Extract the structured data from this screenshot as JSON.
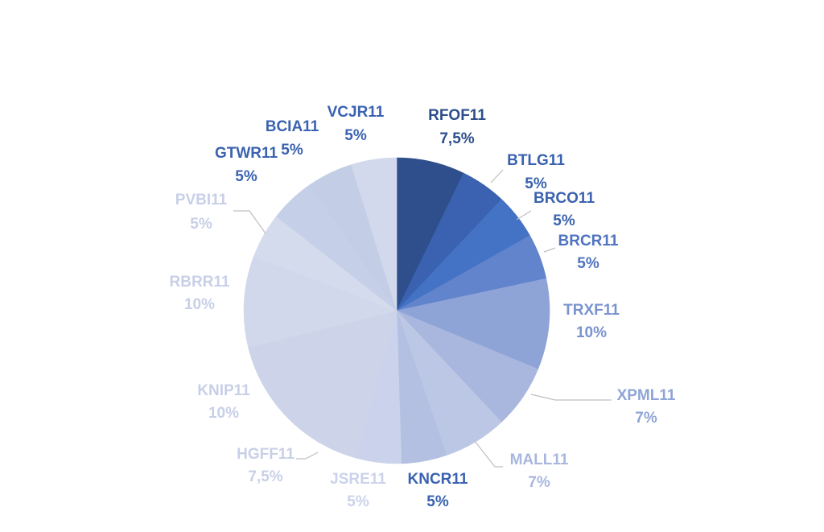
{
  "chart_data": {
    "type": "pie",
    "title": "",
    "labels": [
      "RFOF11",
      "BTLG11",
      "BRCO11",
      "BRCR11",
      "TRXF11",
      "XPML11",
      "MALL11",
      "KNCR11",
      "JSRE11",
      "HGFF11",
      "KNIP11",
      "RBRR11",
      "PVBI11",
      "GTWR11",
      "BCIA11",
      "VCJR11"
    ],
    "values": [
      7.5,
      5,
      5,
      5,
      10,
      7,
      7,
      5,
      5,
      7.5,
      10,
      10,
      5,
      5,
      5,
      5
    ],
    "value_labels": [
      "7,5%",
      "5%",
      "5%",
      "5%",
      "10%",
      "7%",
      "7%",
      "5%",
      "5%",
      "7,5%",
      "10%",
      "10%",
      "5%",
      "5%",
      "5%",
      "5%"
    ],
    "colors": [
      "#2e4f8c",
      "#3a62b0",
      "#4472c4",
      "#6284cc",
      "#8fa4d6",
      "#a9b7de",
      "#bcc7e5",
      "#b3c0e1",
      "#cad3eb",
      "#cdd4ea",
      "#cdd4ea",
      "#d1d8ec",
      "#d4dbed",
      "#c5cfe8",
      "#c3cde6",
      "#d2d9ec"
    ],
    "label_colors": [
      "#2e4f8c",
      "#3a62b0",
      "#3a62b0",
      "#4f73c0",
      "#7a93cf",
      "#8fa4d6",
      "#a9b7de",
      "#3a62b0",
      "#cad3eb",
      "#c8d0e8",
      "#c8d0e8",
      "#c8d0e8",
      "#c8d0e8",
      "#3a62b0",
      "#3a62b0",
      "#3a62b0"
    ],
    "legend": "none"
  }
}
